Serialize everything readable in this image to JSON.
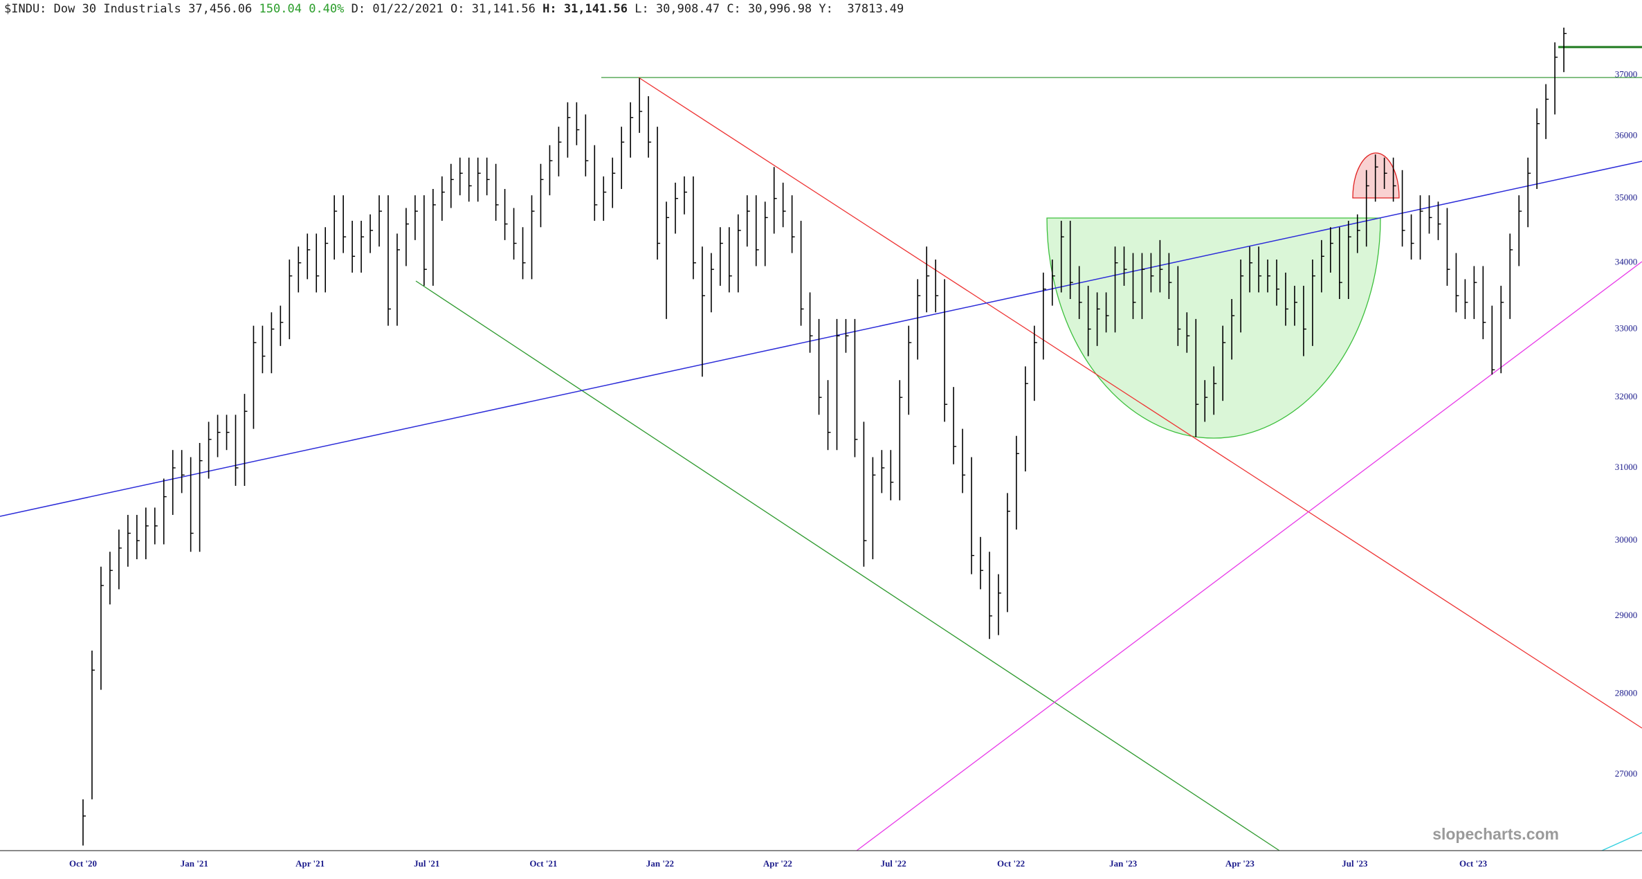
{
  "header": {
    "symbol": "$INDU:",
    "name": "Dow 30 Industrials",
    "last": "37,456.06",
    "change": "150.04",
    "change_pct": "0.40%",
    "date_label": "D:",
    "date": "01/22/2021",
    "open_label": "O:",
    "open": "31,141.56",
    "high_label": "H:",
    "high": "31,141.56",
    "low_label": "L:",
    "low": "30,908.47",
    "close_label": "C:",
    "close": "30,996.98",
    "y_label": "Y:",
    "y": "37813.49"
  },
  "chart_data": {
    "type": "hlc",
    "color": "#000000",
    "log": true,
    "grid": false,
    "watermark": "slopecharts.com",
    "ylim": [
      26090,
      38000
    ],
    "yticks": [
      27000,
      28000,
      29000,
      30000,
      31000,
      32000,
      33000,
      34000,
      35000,
      36000,
      37000
    ],
    "xticks": [
      {
        "value": 0,
        "label": "Oct '20"
      },
      {
        "value": 12.4,
        "label": "Jan '21"
      },
      {
        "value": 25.3,
        "label": "Apr '21"
      },
      {
        "value": 38.3,
        "label": "Jul '21"
      },
      {
        "value": 51.3,
        "label": "Oct '21"
      },
      {
        "value": 64.3,
        "label": "Jan '22"
      },
      {
        "value": 77.4,
        "label": "Apr '22"
      },
      {
        "value": 90.3,
        "label": "Jul '22"
      },
      {
        "value": 103.4,
        "label": "Oct '22"
      },
      {
        "value": 115.9,
        "label": "Jan '23"
      },
      {
        "value": 128.9,
        "label": "Apr '23"
      },
      {
        "value": 141.7,
        "label": "Jul '23"
      },
      {
        "value": 154.9,
        "label": "Oct '23"
      }
    ],
    "high": [
      26700,
      28550,
      29650,
      29850,
      30150,
      30350,
      30350,
      30450,
      30450,
      30850,
      31250,
      31250,
      31150,
      31350,
      31650,
      31750,
      31750,
      31750,
      32050,
      33050,
      33050,
      33250,
      33350,
      34050,
      34250,
      34450,
      34450,
      34550,
      35050,
      35050,
      34650,
      34650,
      34750,
      35050,
      35050,
      34450,
      34850,
      35050,
      35050,
      35150,
      35350,
      35550,
      35650,
      35650,
      35650,
      35650,
      35550,
      35150,
      34850,
      34550,
      35050,
      35550,
      35850,
      36150,
      36550,
      36550,
      36350,
      35850,
      35350,
      35650,
      36150,
      36550,
      36950,
      36650,
      36150,
      34950,
      35250,
      35350,
      35350,
      34250,
      34150,
      34550,
      34550,
      34750,
      35050,
      35050,
      34950,
      35500,
      35250,
      35050,
      34650,
      33550,
      33150,
      32250,
      33150,
      33150,
      33150,
      31650,
      31150,
      31250,
      31250,
      32250,
      33050,
      33750,
      34250,
      34050,
      33750,
      32150,
      31550,
      31150,
      30050,
      29850,
      29550,
      30650,
      31450,
      32450,
      33050,
      33850,
      34050,
      34650,
      34650,
      33950,
      33650,
      33550,
      33550,
      34250,
      34250,
      34150,
      34150,
      34150,
      34350,
      34150,
      33950,
      33250,
      33150,
      32250,
      32450,
      33050,
      33450,
      34050,
      34250,
      34250,
      34050,
      34050,
      33850,
      33650,
      33650,
      34050,
      34350,
      34550,
      34550,
      34650,
      34750,
      35450,
      35700,
      35650,
      35650,
      35450,
      34750,
      35050,
      35050,
      34950,
      34850,
      34150,
      33750,
      33950,
      33950,
      33350,
      33650,
      34450,
      35050,
      35650,
      36450,
      36850,
      37550,
      37800
    ],
    "low": [
      26150,
      26700,
      28050,
      29150,
      29350,
      29650,
      29750,
      29750,
      29950,
      29950,
      30350,
      30650,
      29850,
      29850,
      30850,
      31150,
      31250,
      30750,
      30750,
      31550,
      32350,
      32350,
      32750,
      32850,
      33550,
      33750,
      33550,
      33550,
      34050,
      34150,
      33850,
      33850,
      34150,
      34250,
      33050,
      33050,
      33950,
      34350,
      33650,
      33650,
      34650,
      34850,
      35050,
      34950,
      34950,
      35050,
      34650,
      34350,
      34050,
      33750,
      33750,
      34550,
      35050,
      35350,
      35650,
      35850,
      35350,
      34650,
      34650,
      34850,
      35150,
      35650,
      36050,
      35650,
      34050,
      33150,
      34450,
      34750,
      33750,
      32300,
      33250,
      33650,
      33550,
      33550,
      34250,
      33950,
      33950,
      34450,
      34550,
      34150,
      33050,
      32650,
      31750,
      31250,
      31250,
      32650,
      31150,
      29650,
      29750,
      30650,
      30550,
      30550,
      31750,
      32550,
      33250,
      33250,
      31650,
      31050,
      30650,
      29550,
      29350,
      28700,
      28750,
      29050,
      30150,
      30950,
      31950,
      32550,
      33350,
      33550,
      33450,
      33150,
      32600,
      32750,
      32950,
      32950,
      33650,
      33150,
      33150,
      33550,
      33550,
      33450,
      32750,
      32650,
      31430,
      31650,
      31750,
      31950,
      32550,
      32950,
      33550,
      33550,
      33550,
      33350,
      33050,
      33050,
      32600,
      32750,
      33550,
      33850,
      33450,
      33450,
      34150,
      34250,
      34950,
      35150,
      34950,
      34250,
      34050,
      34050,
      34450,
      34350,
      33650,
      33250,
      33150,
      33150,
      32850,
      32330,
      32350,
      33150,
      33950,
      34550,
      35150,
      35950,
      36350,
      37050
    ],
    "close": [
      26500,
      28300,
      29400,
      29600,
      29900,
      30100,
      30000,
      30200,
      30200,
      30600,
      31000,
      30900,
      30100,
      31100,
      31400,
      31500,
      31500,
      31000,
      31800,
      32800,
      32600,
      33000,
      33100,
      33800,
      34000,
      34200,
      33800,
      34300,
      34800,
      34400,
      34100,
      34400,
      34500,
      34800,
      33300,
      34200,
      34600,
      34800,
      33900,
      34900,
      35100,
      35300,
      35400,
      35200,
      35400,
      35300,
      34900,
      34600,
      34300,
      34000,
      34800,
      35300,
      35600,
      35900,
      36300,
      36100,
      35600,
      34900,
      35100,
      35400,
      35900,
      36300,
      36400,
      35900,
      34300,
      34700,
      35000,
      35100,
      34000,
      33500,
      33900,
      34300,
      33800,
      34500,
      34800,
      34200,
      34700,
      35000,
      34800,
      34400,
      33300,
      32900,
      32000,
      31500,
      32900,
      32900,
      31400,
      30000,
      30900,
      31000,
      30800,
      32000,
      32800,
      33500,
      33800,
      33500,
      31900,
      31300,
      30900,
      29800,
      29600,
      29000,
      29300,
      30400,
      31200,
      32200,
      32800,
      33600,
      33800,
      34400,
      33700,
      33400,
      33000,
      33300,
      33200,
      34000,
      33900,
      33400,
      33900,
      33800,
      33900,
      33700,
      33000,
      32900,
      31900,
      32000,
      32200,
      32800,
      33200,
      33800,
      34000,
      33800,
      33800,
      33600,
      33300,
      33400,
      33000,
      33800,
      34100,
      34300,
      33700,
      34400,
      34500,
      35200,
      35500,
      35400,
      35200,
      34500,
      34300,
      34800,
      34700,
      34600,
      33900,
      33500,
      33400,
      33700,
      33100,
      32400,
      33400,
      34200,
      34800,
      35400,
      36200,
      36600,
      37300,
      37700
    ]
  }
}
